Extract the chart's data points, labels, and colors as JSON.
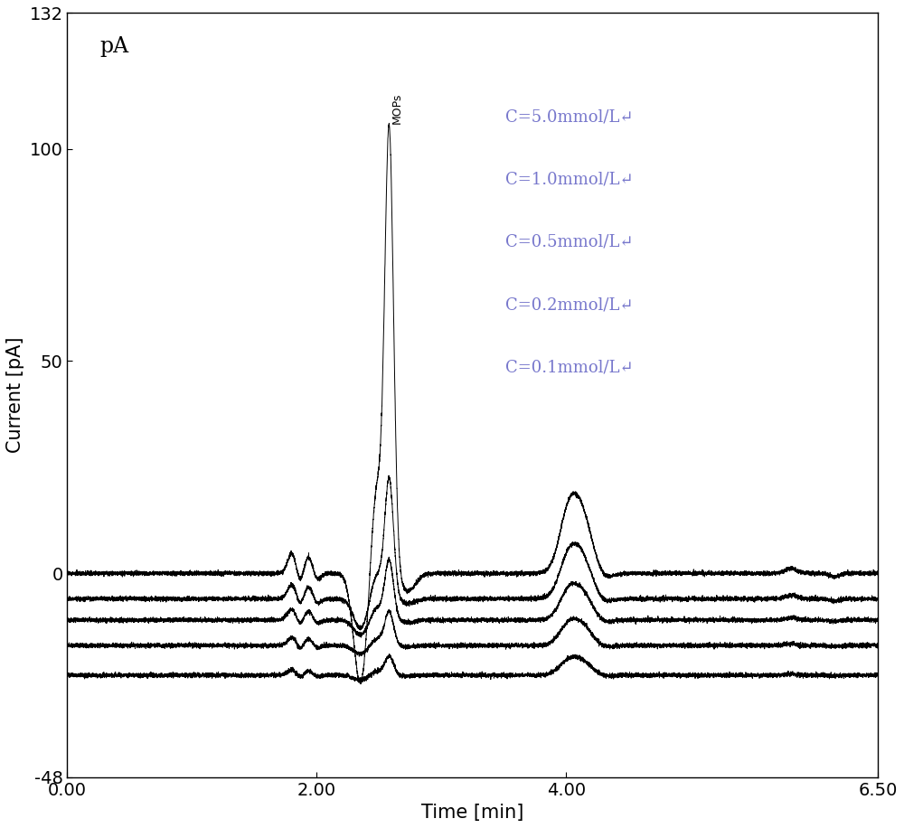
{
  "xlim": [
    0.0,
    6.5
  ],
  "ylim": [
    -48,
    132
  ],
  "yticks": [
    -48,
    0,
    50,
    100,
    132
  ],
  "xticks": [
    0.0,
    2.0,
    4.0,
    6.5
  ],
  "xtick_labels": [
    "0.00",
    "2.00",
    "4.00",
    "6.50"
  ],
  "xlabel": "Time [min]",
  "ylabel": "Current [pA]",
  "pA_label": "pA",
  "mops_label": "MOPs",
  "legend_labels": [
    "C=5.0mmol/L↵",
    "C=1.0mmol/L↵",
    "C=0.5mmol/L↵",
    "C=0.2mmol/L↵",
    "C=0.1mmol/L↵"
  ],
  "legend_color": "#7777cc",
  "line_color": "#000000",
  "bg_color": "#ffffff",
  "noise_amplitude": 0.25,
  "num_traces": 5,
  "trace_offsets": [
    0,
    -6,
    -11,
    -17,
    -24
  ],
  "peak_heights_mops": [
    104,
    28,
    14,
    8,
    4.5
  ],
  "peak_heights_second": [
    6.5,
    4.5,
    3.0,
    2.2,
    1.5
  ],
  "peak_heights_early": [
    5.5,
    4.0,
    3.0,
    2.2,
    1.5
  ],
  "peak1_time": 1.88,
  "peak2_time": 2.58,
  "peak3_time": 4.12,
  "axis_fontsize": 15,
  "tick_fontsize": 14,
  "legend_fontsize": 13,
  "pA_fontsize": 17
}
